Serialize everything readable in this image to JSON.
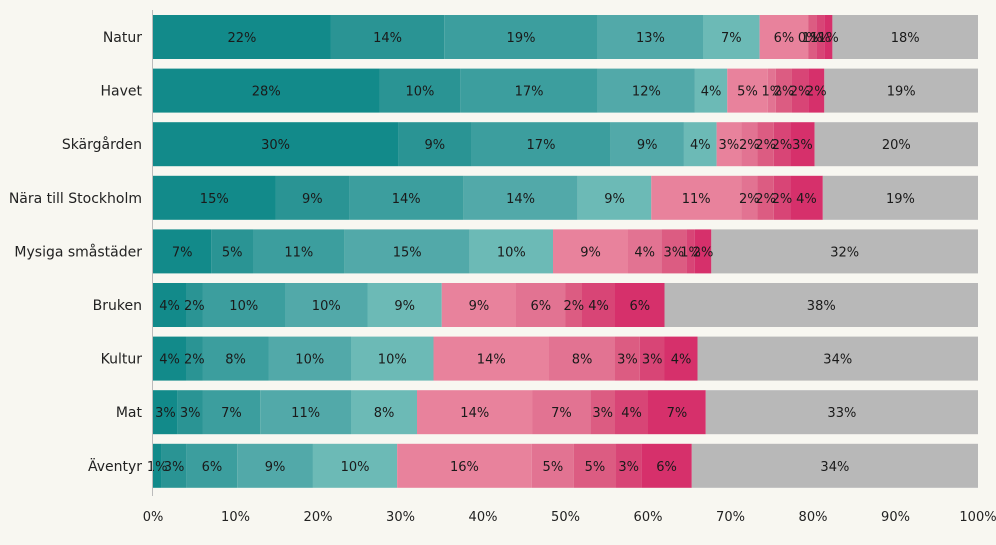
{
  "chart_data": {
    "type": "bar",
    "orientation": "horizontal",
    "stacked": true,
    "percent_stacked": true,
    "title": "",
    "xlabel": "",
    "ylabel": "",
    "xlim": [
      0,
      100
    ],
    "x_ticks": [
      "0%",
      "10%",
      "20%",
      "30%",
      "40%",
      "50%",
      "60%",
      "70%",
      "80%",
      "90%",
      "100%"
    ],
    "grid": false,
    "legend": "none",
    "categories": [
      "Natur",
      "Havet",
      "Skärgården",
      "Nära till Stockholm",
      "Mysiga småstäder",
      "Bruken",
      "Kultur",
      "Mat",
      "Äventyr"
    ],
    "series": [
      {
        "color": "#128a8a",
        "values": [
          22,
          28,
          30,
          15,
          7,
          4,
          4,
          3,
          1
        ]
      },
      {
        "color": "#2a9494",
        "values": [
          14,
          10,
          9,
          9,
          5,
          2,
          2,
          3,
          3
        ]
      },
      {
        "color": "#3c9e9e",
        "values": [
          19,
          17,
          17,
          14,
          11,
          10,
          8,
          7,
          6
        ]
      },
      {
        "color": "#52a9a9",
        "values": [
          13,
          12,
          9,
          14,
          15,
          10,
          10,
          11,
          9
        ]
      },
      {
        "color": "#6cbab6",
        "values": [
          7,
          4,
          4,
          9,
          10,
          9,
          10,
          8,
          10
        ]
      },
      {
        "color": "#e8829c",
        "values": [
          6,
          5,
          3,
          11,
          9,
          9,
          14,
          14,
          16
        ]
      },
      {
        "color": "#e27392",
        "values": [
          0,
          1,
          2,
          2,
          4,
          6,
          8,
          7,
          5
        ]
      },
      {
        "color": "#dc5c82",
        "values": [
          1,
          2,
          2,
          2,
          3,
          2,
          3,
          3,
          5
        ]
      },
      {
        "color": "#d84576",
        "values": [
          1,
          2,
          2,
          2,
          1,
          4,
          3,
          4,
          3
        ]
      },
      {
        "color": "#d6306b",
        "values": [
          1,
          2,
          3,
          4,
          2,
          6,
          4,
          7,
          6
        ]
      },
      {
        "color": "#b8b8b8",
        "values": [
          18,
          19,
          20,
          19,
          32,
          38,
          34,
          33,
          34
        ]
      }
    ]
  }
}
